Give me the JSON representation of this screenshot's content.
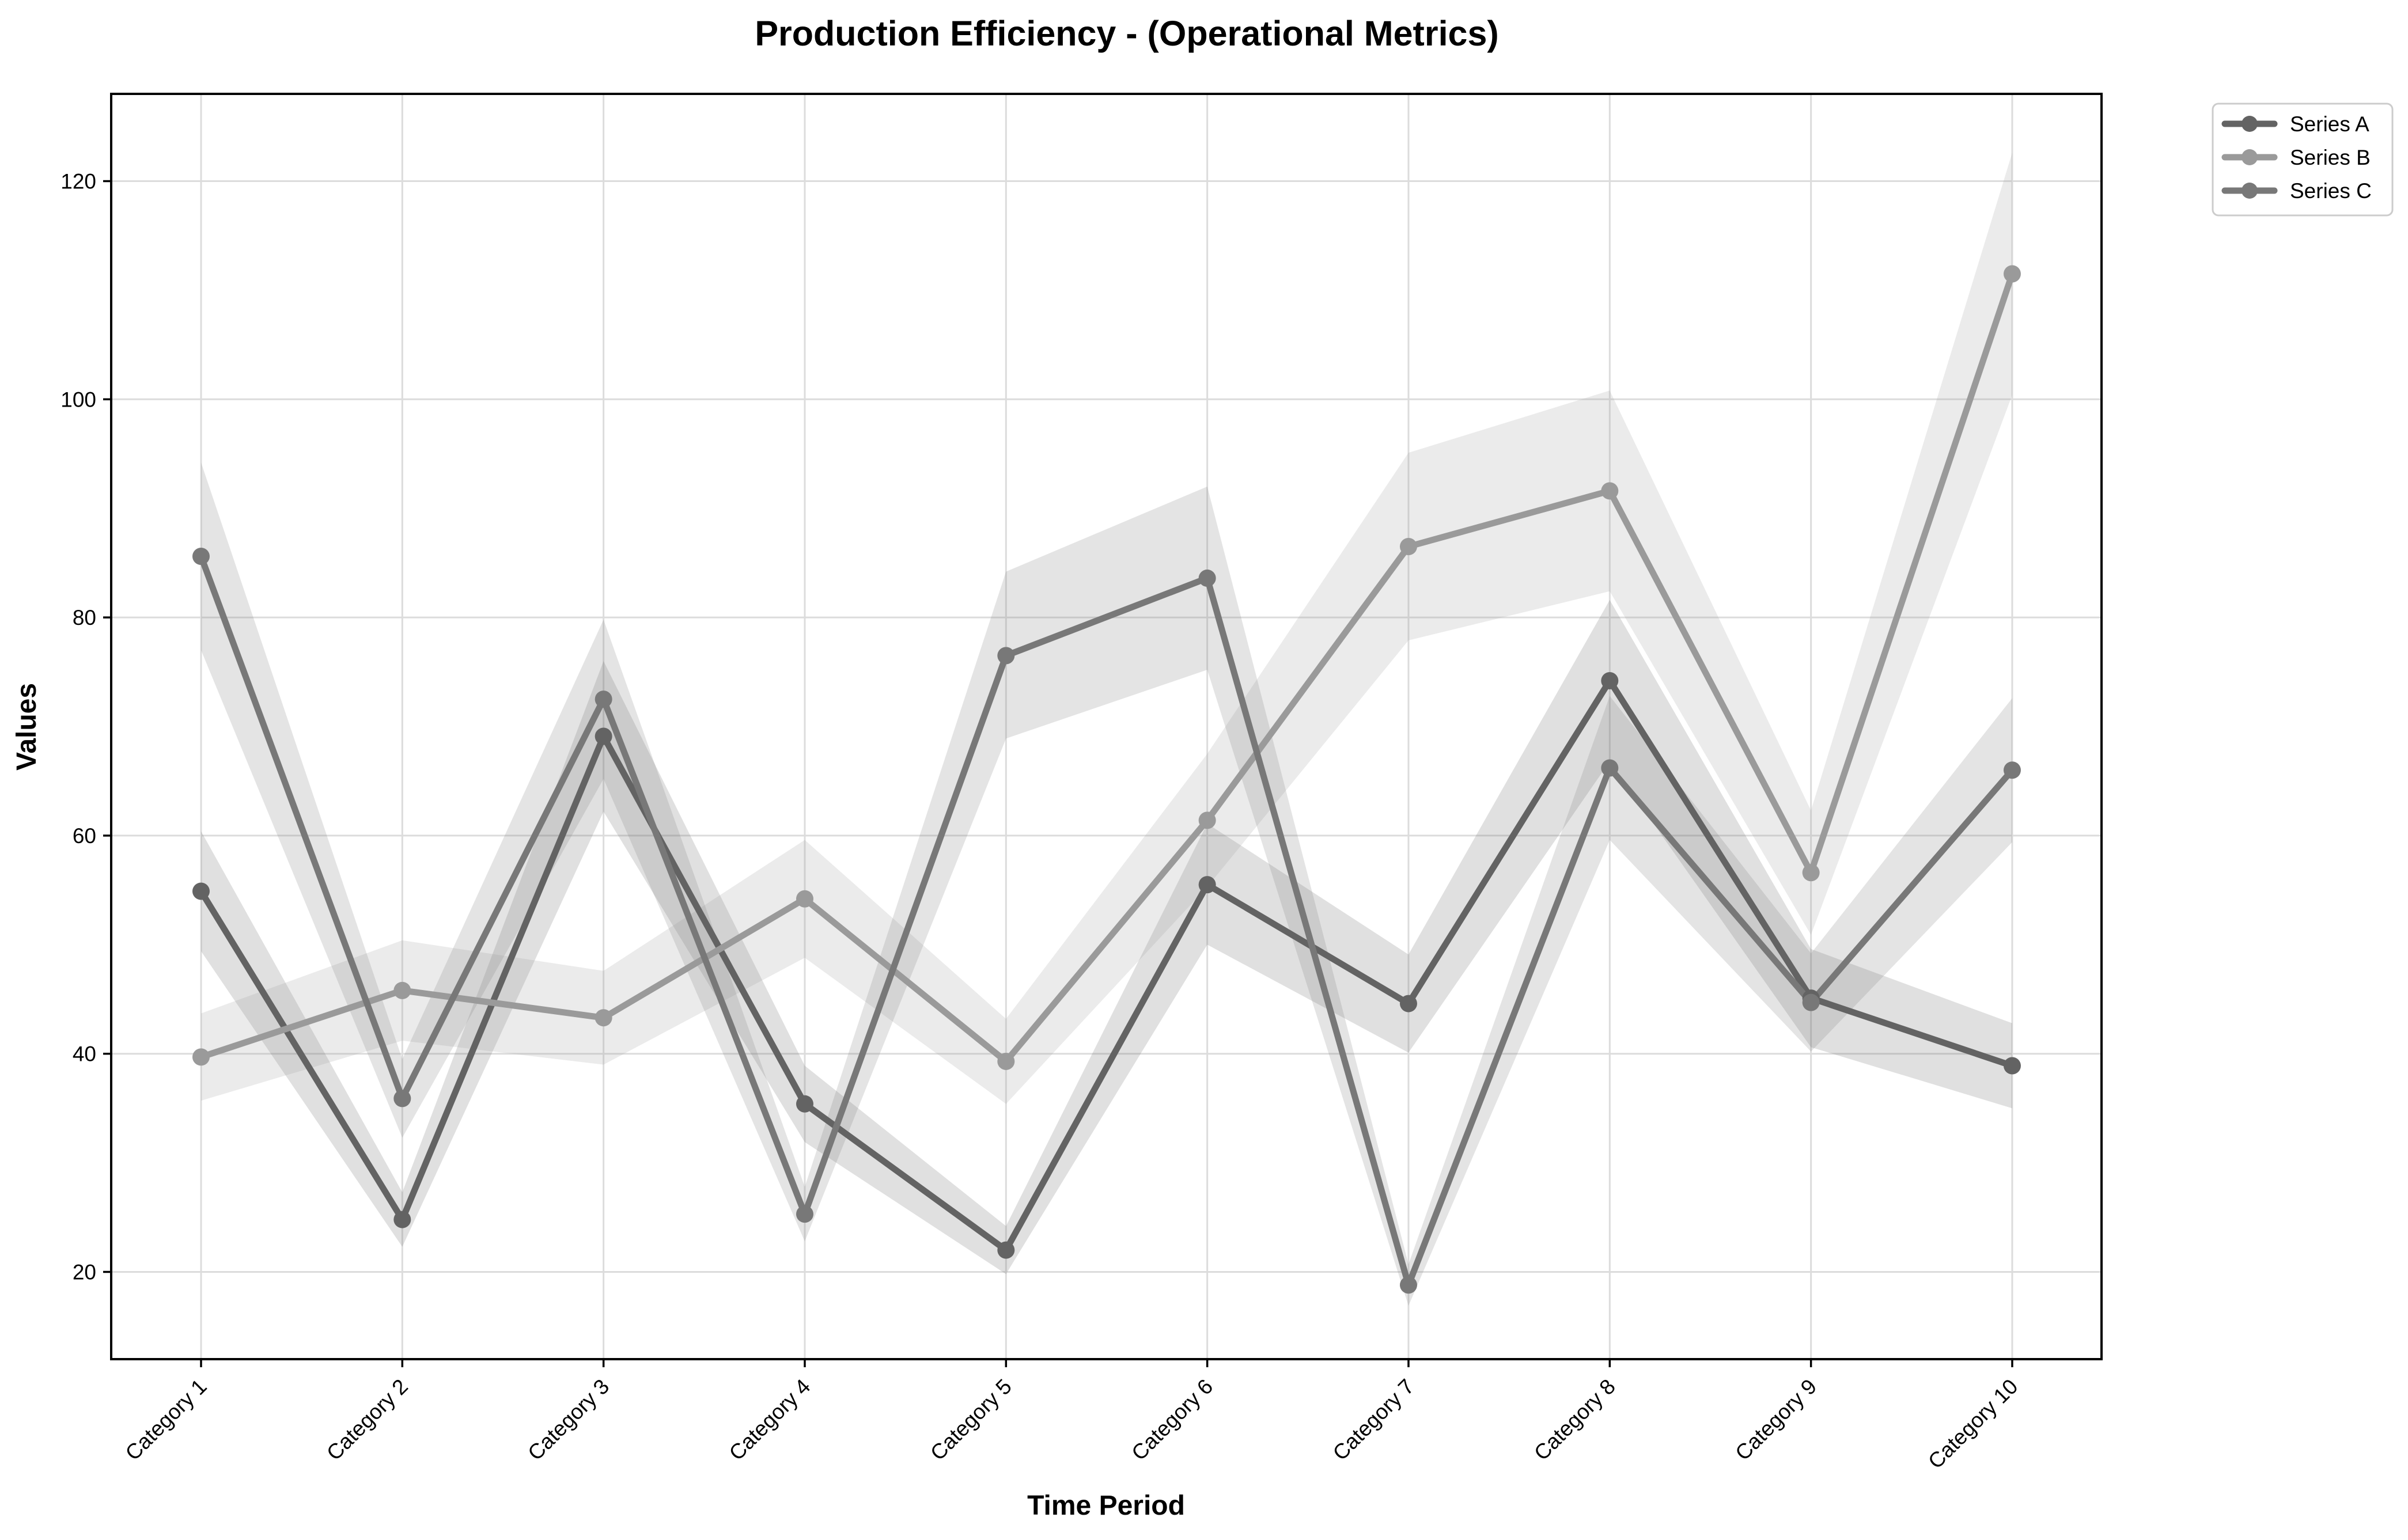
{
  "chart_data": {
    "type": "line",
    "title": "Production Efficiency - (Operational Metrics)",
    "xlabel": "Time Period",
    "ylabel": "Values",
    "categories": [
      "Category 1",
      "Category 2",
      "Category 3",
      "Category 4",
      "Category 5",
      "Category 6",
      "Category 7",
      "Category 8",
      "Category 9",
      "Category 10"
    ],
    "ylim": [
      12,
      128
    ],
    "yticks": [
      20,
      40,
      60,
      80,
      100,
      120
    ],
    "grid": true,
    "legend_position": "outside-top-right",
    "series": [
      {
        "name": "Series A",
        "color": "#636363",
        "values": [
          54.9,
          24.8,
          69.1,
          35.4,
          22.0,
          55.5,
          44.6,
          74.2,
          45.1,
          38.9
        ],
        "lower": [
          49.4,
          22.3,
          62.2,
          31.9,
          19.8,
          50.0,
          40.1,
          66.8,
          40.6,
          35.0
        ],
        "upper": [
          60.4,
          27.3,
          76.0,
          38.9,
          24.2,
          61.1,
          49.1,
          81.6,
          49.6,
          42.8
        ]
      },
      {
        "name": "Series B",
        "color": "#9a9a9a",
        "values": [
          39.7,
          45.8,
          43.3,
          54.2,
          39.3,
          61.4,
          86.5,
          91.6,
          56.6,
          111.5
        ],
        "lower": [
          35.7,
          41.2,
          39.0,
          48.8,
          35.4,
          55.3,
          77.9,
          82.4,
          50.9,
          100.4
        ],
        "upper": [
          43.7,
          50.4,
          47.6,
          59.6,
          43.2,
          67.5,
          95.1,
          100.8,
          62.3,
          122.6
        ]
      },
      {
        "name": "Series C",
        "color": "#787878",
        "values": [
          85.6,
          35.9,
          72.5,
          25.3,
          76.5,
          83.6,
          18.8,
          66.2,
          44.7,
          66.0
        ],
        "lower": [
          77.0,
          32.3,
          65.2,
          22.8,
          68.9,
          75.2,
          16.9,
          59.6,
          40.2,
          59.4
        ],
        "upper": [
          94.2,
          39.5,
          79.8,
          27.8,
          84.2,
          92.0,
          20.7,
          72.8,
          49.2,
          72.6
        ]
      }
    ]
  }
}
